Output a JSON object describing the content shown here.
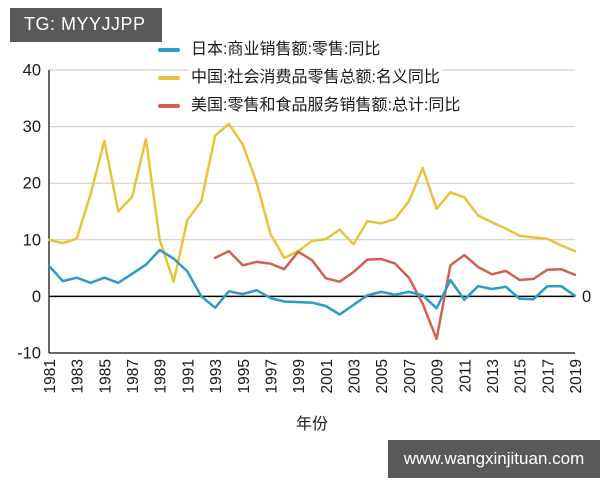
{
  "badge": {
    "label": "TG: MYYJJPP"
  },
  "watermark": {
    "text": "www.wangxinjituan.com"
  },
  "colors": {
    "japan": "#2B9BC7",
    "china": "#E9C23C",
    "us": "#D2604E",
    "badge_bg": "#58595B",
    "watermark_bg": "#58595B",
    "grid": "#C9C9C9",
    "zero_line": "#000000",
    "axis": "#333333",
    "text": "#1A1A1A"
  },
  "chart_data": {
    "type": "line",
    "title": "",
    "xlabel": "年份",
    "ylabel": "",
    "ylim": [
      -10,
      40
    ],
    "yticks": [
      40,
      30,
      20,
      10,
      0,
      -10
    ],
    "right_axis_zero_label": "0",
    "grid": true,
    "legend_position": "top-overlay",
    "x": [
      1981,
      1982,
      1983,
      1984,
      1985,
      1986,
      1987,
      1988,
      1989,
      1990,
      1991,
      1992,
      1993,
      1994,
      1995,
      1996,
      1997,
      1998,
      1999,
      2000,
      2001,
      2002,
      2003,
      2004,
      2005,
      2006,
      2007,
      2008,
      2009,
      2010,
      2011,
      2012,
      2013,
      2014,
      2015,
      2016,
      2017,
      2018,
      2019
    ],
    "xtick_labels": [
      "1981",
      "1983",
      "1985",
      "1987",
      "1989",
      "1991",
      "1993",
      "1995",
      "1997",
      "1999",
      "2001",
      "2003",
      "2005",
      "2007",
      "2009",
      "2011",
      "2013",
      "2015",
      "2017",
      "2019"
    ],
    "series": [
      {
        "name": "日本:商业销售额:零售:同比",
        "color": "#2B9BC7",
        "values": [
          5.4,
          2.7,
          3.3,
          2.4,
          3.3,
          2.4,
          4.0,
          5.6,
          8.2,
          6.7,
          4.4,
          0.0,
          -2.0,
          0.9,
          0.4,
          1.1,
          -0.3,
          -0.9,
          -1.0,
          -1.1,
          -1.7,
          -3.2,
          -1.5,
          0.2,
          0.8,
          0.3,
          0.8,
          0.2,
          -2.1,
          2.9,
          -0.6,
          1.8,
          1.3,
          1.7,
          -0.4,
          -0.5,
          1.8,
          1.8,
          0.1
        ]
      },
      {
        "name": "中国:社会消费品零售总额:名义同比",
        "color": "#E9C23C",
        "values": [
          10.0,
          9.4,
          10.2,
          18.0,
          27.5,
          15.0,
          17.6,
          27.8,
          10.0,
          2.6,
          13.5,
          16.8,
          28.4,
          30.5,
          26.8,
          20.1,
          11.0,
          6.8,
          8.0,
          9.8,
          10.1,
          11.8,
          9.2,
          13.3,
          12.9,
          13.7,
          16.8,
          22.7,
          15.5,
          18.4,
          17.5,
          14.3,
          13.1,
          12.0,
          10.7,
          10.4,
          10.2,
          9.0,
          8.0
        ]
      },
      {
        "name": "美国:零售和食品服务销售额:总计:同比",
        "color": "#D2604E",
        "values": [
          null,
          null,
          null,
          null,
          null,
          null,
          null,
          null,
          null,
          null,
          null,
          null,
          6.8,
          8.0,
          5.5,
          6.1,
          5.8,
          4.8,
          7.9,
          6.4,
          3.2,
          2.6,
          4.3,
          6.5,
          6.6,
          5.8,
          3.3,
          -1.3,
          -7.5,
          5.5,
          7.3,
          5.2,
          3.9,
          4.5,
          2.9,
          3.1,
          4.7,
          4.8,
          3.8
        ]
      }
    ]
  }
}
